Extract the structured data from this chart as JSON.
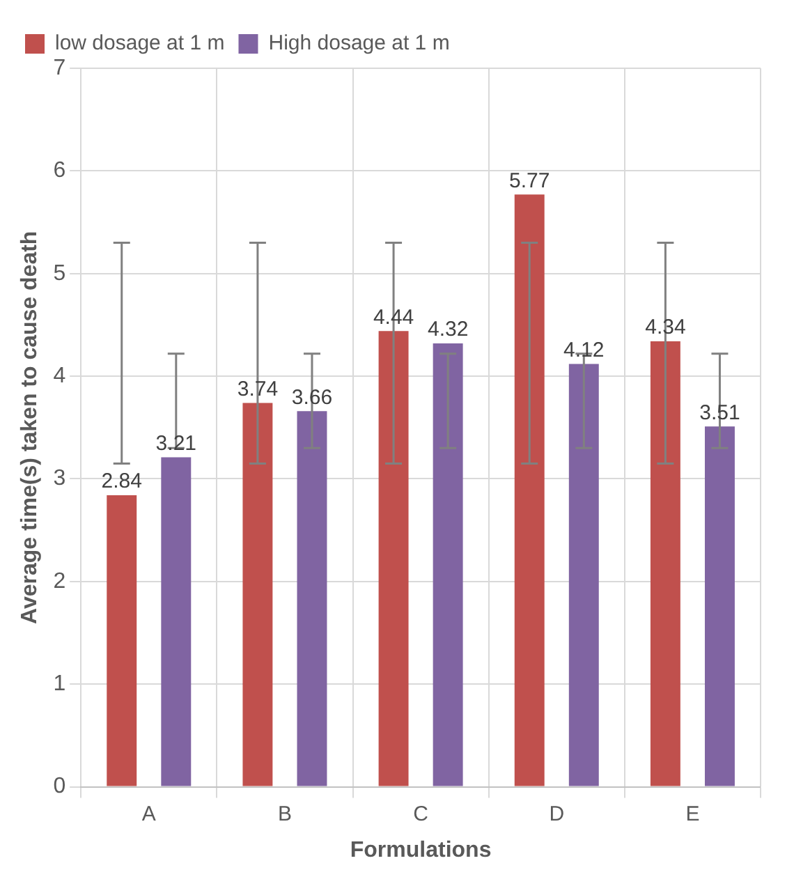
{
  "chart_data": {
    "type": "bar",
    "xlabel": "Formulations",
    "ylabel": "Average time(s) taken to cause death",
    "categories": [
      "A",
      "B",
      "C",
      "D",
      "E"
    ],
    "series": [
      {
        "name": "low dosage at 1 m",
        "color": "#c0504d",
        "values": [
          2.84,
          3.74,
          4.44,
          5.77,
          4.34
        ],
        "errors": [
          [
            3.15,
            5.3
          ],
          [
            3.15,
            5.3
          ],
          [
            3.15,
            5.3
          ],
          [
            3.15,
            5.3
          ],
          [
            3.15,
            5.3
          ]
        ]
      },
      {
        "name": "High dosage at 1 m",
        "color": "#8064a2",
        "values": [
          3.21,
          3.66,
          4.32,
          4.12,
          3.51
        ],
        "errors": [
          [
            3.3,
            4.22
          ],
          [
            3.3,
            4.22
          ],
          [
            3.3,
            4.22
          ],
          [
            3.3,
            4.22
          ],
          [
            3.3,
            4.22
          ]
        ]
      }
    ],
    "ylim": [
      0,
      7
    ],
    "yticks": [
      0,
      1,
      2,
      3,
      4,
      5,
      6,
      7
    ],
    "grid": true,
    "legend": "top left",
    "data_labels": true
  }
}
